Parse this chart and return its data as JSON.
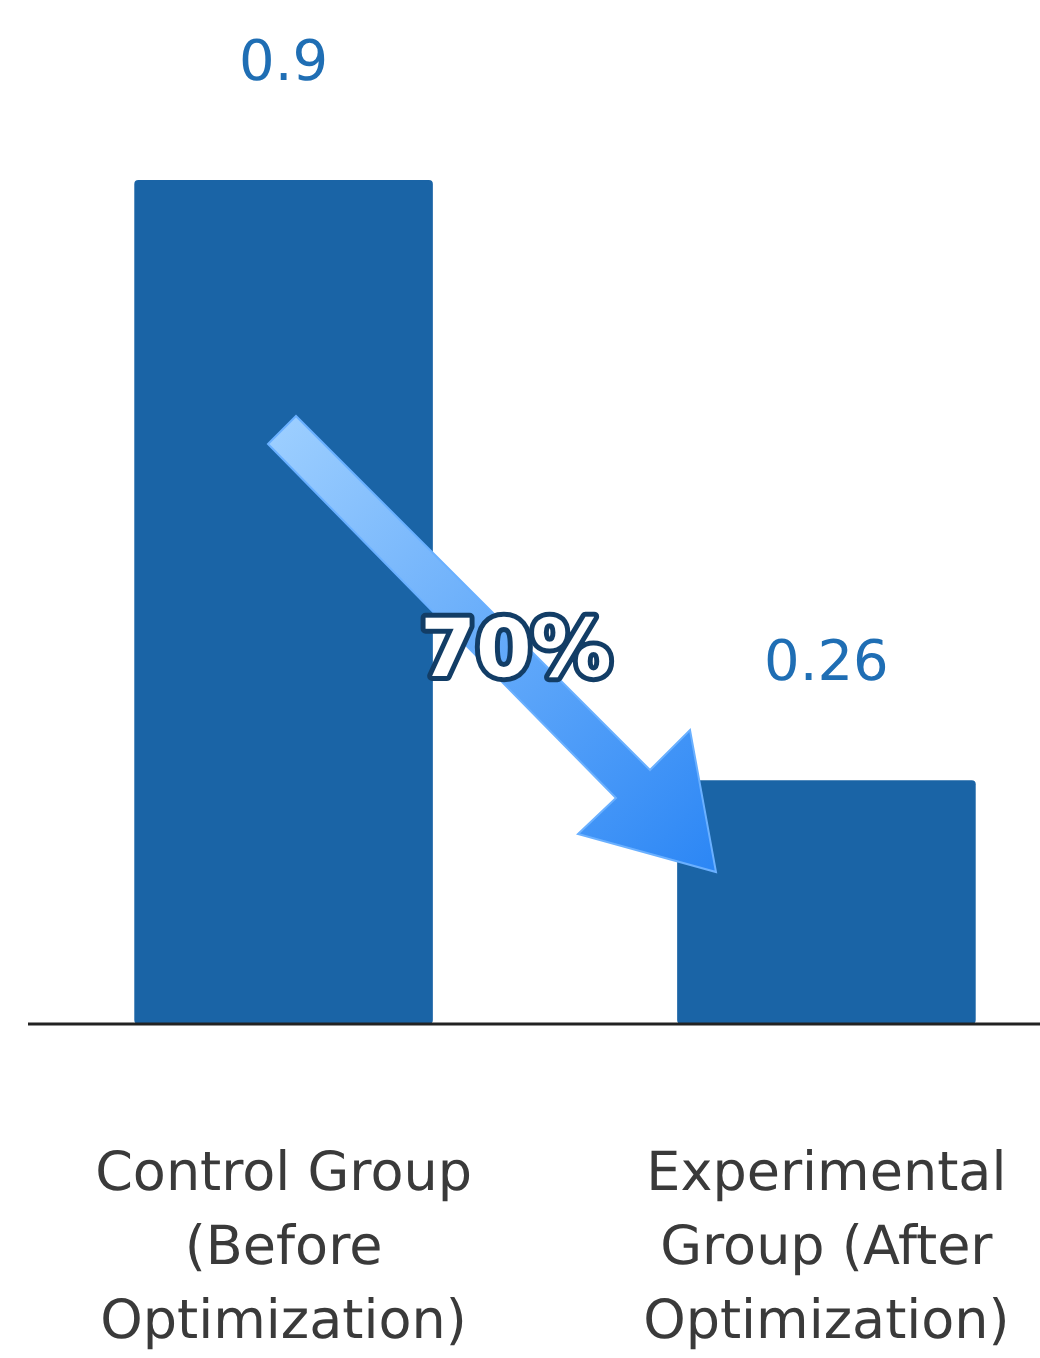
{
  "chart_data": {
    "type": "bar",
    "categories": [
      "Control Group (Before Optimization)",
      "Experimental Group (After Optimization)"
    ],
    "values": [
      0.9,
      0.26
    ],
    "color": "#1a64a6",
    "data_labels": true,
    "annotations": [
      "70%"
    ]
  }
}
